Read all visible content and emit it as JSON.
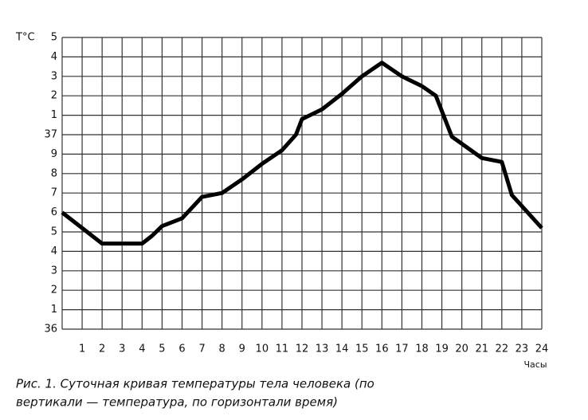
{
  "chart_data": {
    "type": "line",
    "y_label": "T°C",
    "x_label": "Часы",
    "caption": [
      "Рис. 1. Суточная кривая температуры тела человека (по",
      "вертикали — температура, по горизонтали    время)"
    ],
    "x": [
      0,
      1,
      2,
      3,
      4,
      4.5,
      5,
      6,
      7,
      8,
      9,
      10,
      11,
      11.7,
      12,
      13,
      14,
      15,
      16,
      17,
      18,
      18.7,
      19.5,
      21,
      22,
      22.5,
      24
    ],
    "values": [
      36.6,
      36.52,
      36.44,
      36.44,
      36.44,
      36.48,
      36.53,
      36.57,
      36.68,
      36.7,
      36.77,
      36.85,
      36.92,
      37.0,
      37.08,
      37.13,
      37.21,
      37.3,
      37.37,
      37.3,
      37.25,
      37.2,
      36.99,
      36.88,
      36.86,
      36.69,
      36.52
    ],
    "color": "#000000",
    "xlim": [
      0,
      24
    ],
    "xticks": [
      1,
      2,
      3,
      4,
      5,
      6,
      7,
      8,
      9,
      10,
      11,
      12,
      13,
      14,
      15,
      16,
      17,
      18,
      19,
      20,
      21,
      22,
      23,
      24
    ],
    "ylim": [
      36,
      37.5
    ],
    "yticks": [
      36,
      {
        "value": 36.1,
        "label": "1"
      },
      {
        "value": 36.2,
        "label": "2"
      },
      {
        "value": 36.3,
        "label": "3"
      },
      {
        "value": 36.4,
        "label": "4"
      },
      {
        "value": 36.5,
        "label": "5"
      },
      {
        "value": 36.6,
        "label": "6"
      },
      {
        "value": 36.7,
        "label": "7"
      },
      {
        "value": 36.8,
        "label": "8"
      },
      {
        "value": 36.9,
        "label": "9"
      },
      37,
      {
        "value": 37.1,
        "label": "1"
      },
      {
        "value": 37.2,
        "label": "2"
      },
      {
        "value": 37.3,
        "label": "3"
      },
      {
        "value": 37.4,
        "label": "4"
      },
      {
        "value": 37.5,
        "label": "5"
      }
    ],
    "grid": true
  }
}
